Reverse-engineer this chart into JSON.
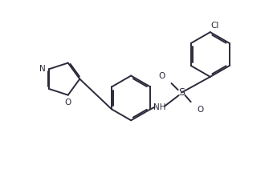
{
  "bg_color": "#ffffff",
  "line_color": "#2a2a3a",
  "text_color": "#2a2a3a",
  "line_width": 1.4,
  "font_size": 7.5,
  "fig_width": 3.4,
  "fig_height": 2.21,
  "dpi": 100,
  "xlim": [
    0,
    10
  ],
  "ylim": [
    0,
    6.5
  ]
}
